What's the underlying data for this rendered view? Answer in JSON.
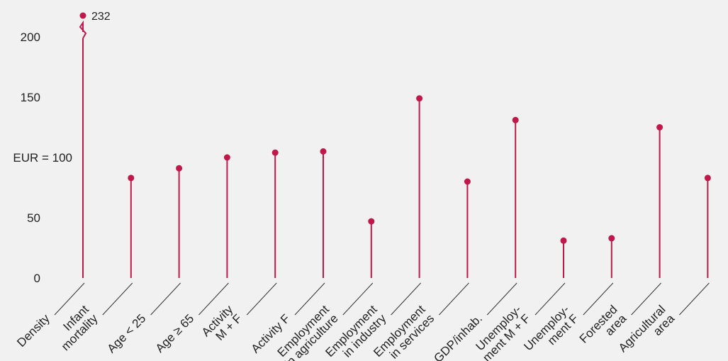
{
  "chart_data": {
    "type": "lollipop",
    "title": "",
    "xlabel": "",
    "ylabel": "",
    "ylim": [
      0,
      210
    ],
    "grid": false,
    "legend": "none",
    "yticks": [
      {
        "value": 0,
        "label": "0"
      },
      {
        "value": 50,
        "label": "50"
      },
      {
        "value": 100,
        "label": "EUR = 100"
      },
      {
        "value": 150,
        "label": "150"
      },
      {
        "value": 200,
        "label": "200"
      }
    ],
    "categories": [
      [
        "Density"
      ],
      [
        "Infant",
        "mortality"
      ],
      [
        "Age < 25"
      ],
      [
        "Age ≥ 65"
      ],
      [
        "Activity",
        "M + F"
      ],
      [
        "Activity F"
      ],
      [
        "Employment",
        "in agriculture"
      ],
      [
        "Employment",
        "in industry"
      ],
      [
        "Employment",
        "in services"
      ],
      [
        "GDP/inhab."
      ],
      [
        "Unemploy-",
        "ment M + F"
      ],
      [
        "Unemploy-",
        "ment F"
      ],
      [
        "Forested",
        "area"
      ],
      [
        "Agricultural",
        "area"
      ]
    ],
    "values": [
      232,
      83,
      91,
      100,
      104,
      105,
      47,
      149,
      80,
      131,
      31,
      33,
      125,
      83
    ],
    "data_labels": [
      {
        "index": 0,
        "text": "232"
      }
    ],
    "color": "#c0184a"
  }
}
